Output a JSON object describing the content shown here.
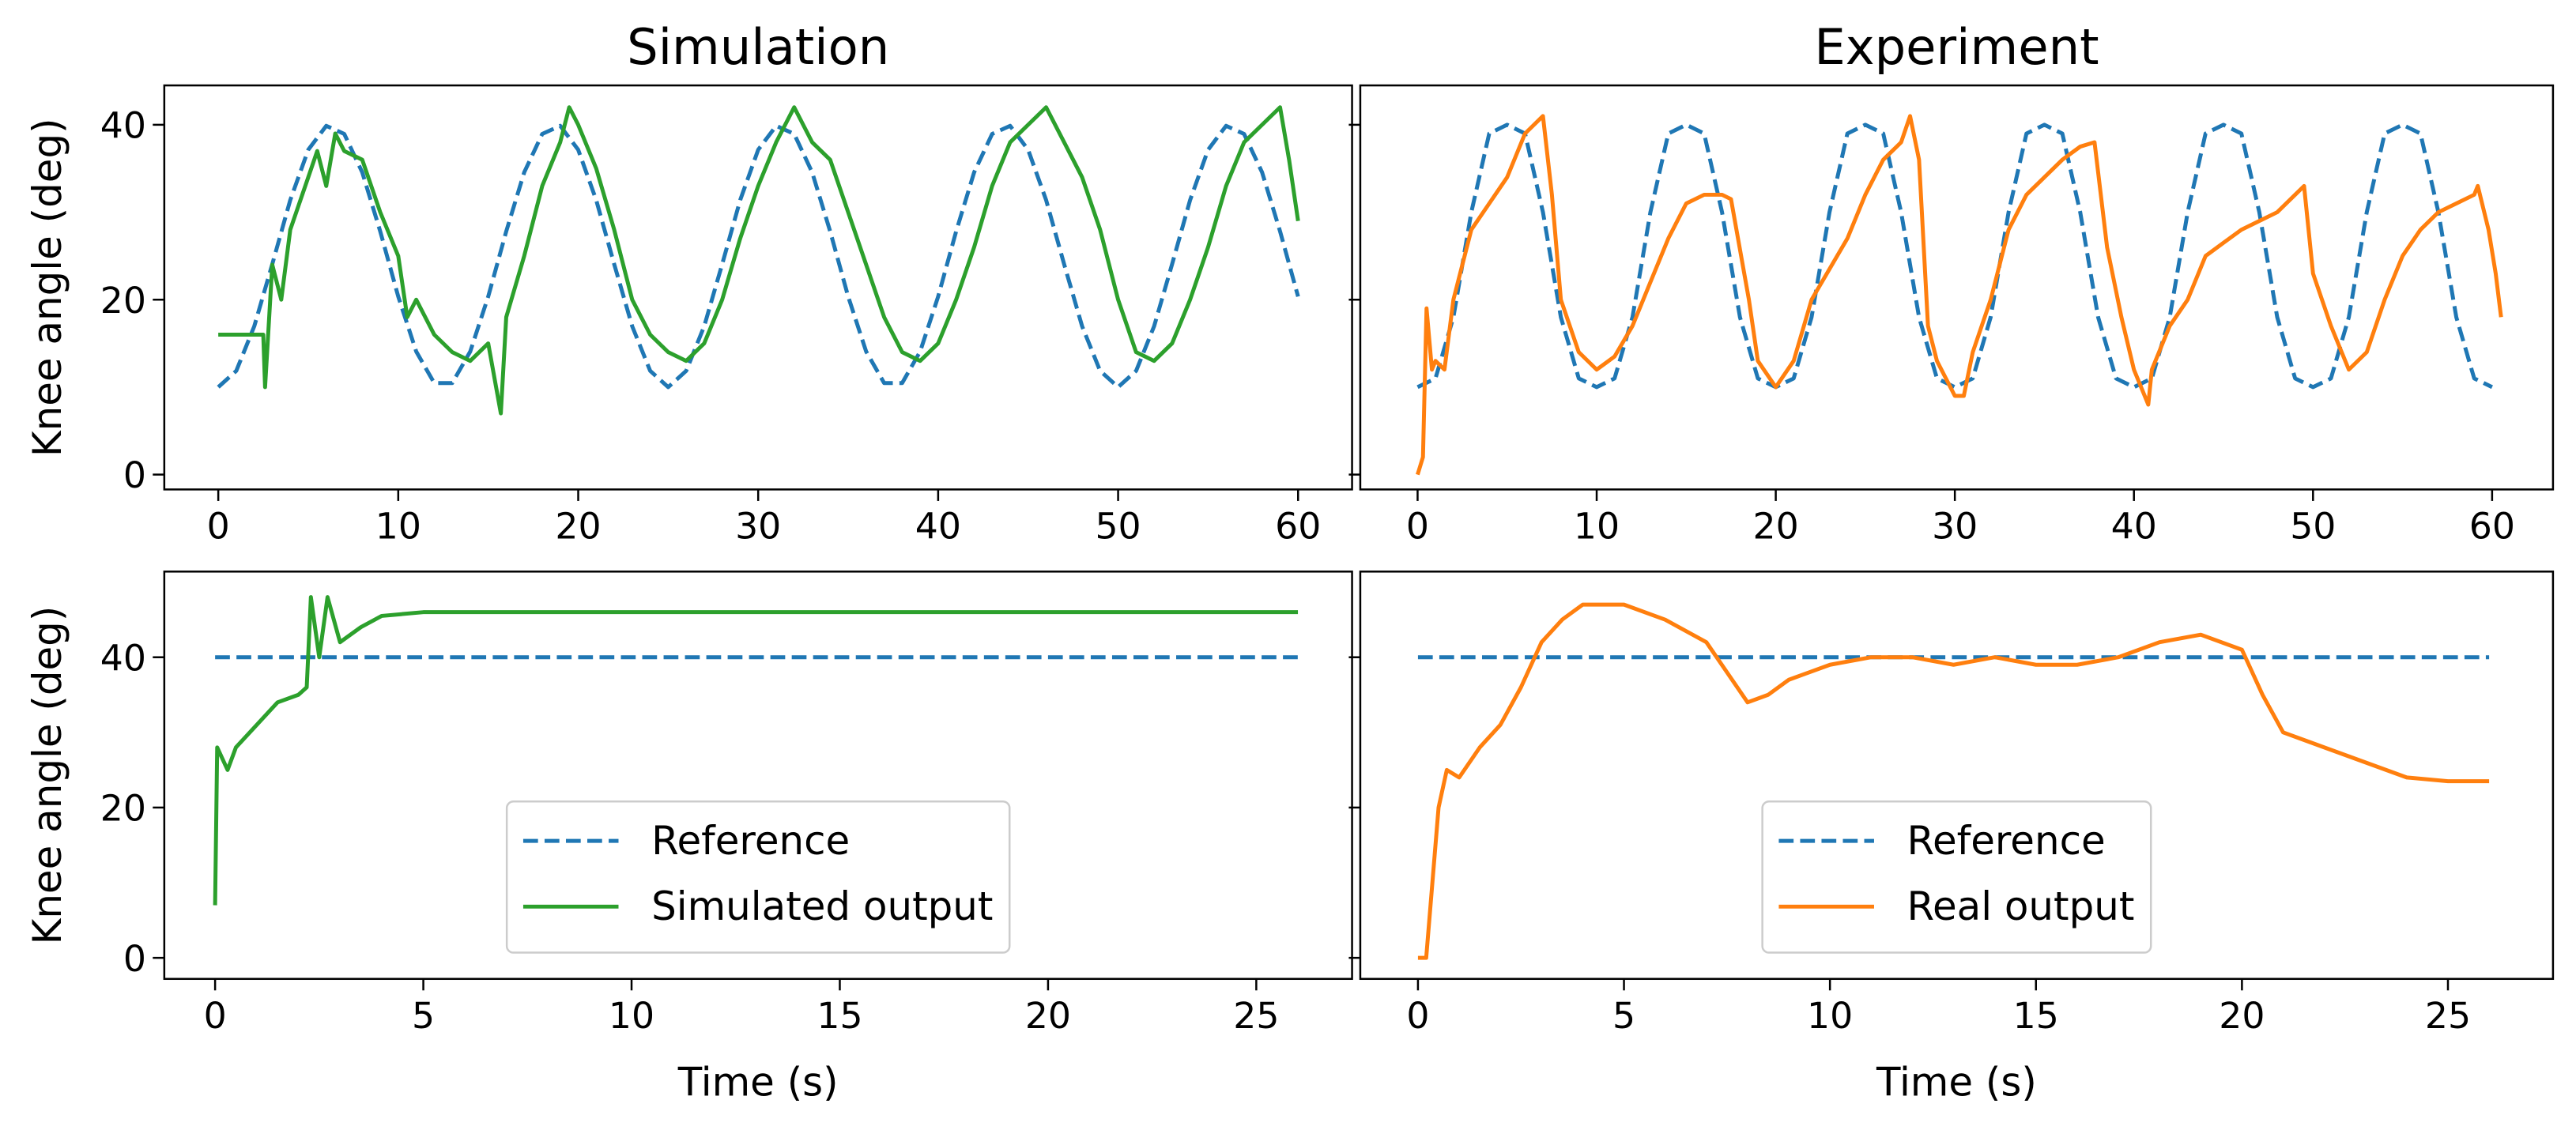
{
  "chart_data": [
    {
      "type": "line",
      "title": "Simulation",
      "ylabel": "Knee angle (deg)",
      "xlim": [
        -3,
        63
      ],
      "xticks": [
        0,
        10,
        20,
        30,
        40,
        50,
        60
      ],
      "ylim": [
        -1.7,
        44.5
      ],
      "yticks": [
        0,
        20,
        40
      ],
      "ytick_labels": true,
      "series": [
        {
          "color": "#1f77b4",
          "dashed": true,
          "x": [
            0,
            1,
            2,
            3,
            4,
            5,
            6,
            7,
            8,
            9,
            10,
            11,
            12,
            13,
            14,
            15,
            16,
            17,
            18,
            19,
            20,
            21,
            22,
            23,
            24,
            25,
            26,
            27,
            28,
            29,
            30,
            31,
            32,
            33,
            34,
            35,
            36,
            37,
            38,
            39,
            40,
            41,
            42,
            43,
            44,
            45,
            46,
            47,
            48,
            49,
            50,
            51,
            52,
            53,
            54,
            55,
            56,
            57,
            58,
            59,
            60
          ],
          "values": [
            10,
            11.86,
            16.96,
            24.06,
            31.39,
            37.14,
            39.88,
            38.95,
            34.56,
            27.81,
            20.36,
            14.07,
            10.47,
            10.47,
            14.07,
            20.36,
            27.81,
            34.56,
            38.95,
            39.88,
            37.14,
            31.39,
            24.06,
            16.96,
            11.86,
            10,
            11.86,
            16.96,
            24.06,
            31.39,
            37.14,
            39.88,
            38.95,
            34.56,
            27.81,
            20.36,
            14.07,
            10.47,
            10.47,
            14.07,
            20.36,
            27.81,
            34.56,
            38.95,
            39.88,
            37.14,
            31.39,
            24.06,
            16.96,
            11.86,
            10,
            11.86,
            16.96,
            24.06,
            31.39,
            37.14,
            39.88,
            38.95,
            34.56,
            27.81,
            20.36
          ]
        },
        {
          "color": "#2ca02c",
          "dashed": false,
          "x": [
            0,
            2.5,
            2.6,
            3,
            3.5,
            4,
            5,
            5.5,
            6,
            6.5,
            7,
            8,
            9,
            10,
            10.5,
            11,
            12,
            13,
            14,
            15,
            15.7,
            16,
            17,
            18,
            19,
            19.5,
            20,
            21,
            22,
            23,
            24,
            25,
            26,
            27,
            28,
            29,
            30,
            31,
            32,
            33,
            34,
            35,
            36,
            37,
            38,
            39,
            40,
            41,
            42,
            43,
            44,
            45,
            46,
            47,
            48,
            49,
            50,
            51,
            52,
            53,
            54,
            55,
            56,
            57,
            58,
            59,
            59.5,
            60
          ],
          "values": [
            16,
            16,
            10,
            24,
            20,
            28,
            34,
            37,
            33,
            39,
            37,
            36,
            30,
            25,
            18,
            20,
            16,
            14,
            13,
            15,
            7,
            18,
            25,
            33,
            38,
            42,
            40,
            35,
            28,
            20,
            16,
            14,
            13,
            15,
            20,
            27,
            33,
            38,
            42,
            38,
            36,
            30,
            24,
            18,
            14,
            13,
            15,
            20,
            26,
            33,
            38,
            40,
            42,
            38,
            34,
            28,
            20,
            14,
            13,
            15,
            20,
            26,
            33,
            38,
            40,
            42,
            36,
            29
          ]
        }
      ]
    },
    {
      "type": "line",
      "title": "Experiment",
      "xlim": [
        -3.2,
        63.4
      ],
      "xticks": [
        0,
        10,
        20,
        30,
        40,
        50,
        60
      ],
      "ylim": [
        -1.7,
        44.5
      ],
      "yticks": [
        0,
        20,
        40
      ],
      "ytick_labels": false,
      "series": [
        {
          "color": "#1f77b4",
          "dashed": true,
          "x": [
            0,
            1,
            2,
            3,
            4,
            5,
            6,
            7,
            8,
            9,
            10,
            11,
            12,
            13,
            14,
            15,
            16,
            17,
            18,
            19,
            20,
            21,
            22,
            23,
            24,
            25,
            26,
            27,
            28,
            29,
            30,
            31,
            32,
            33,
            34,
            35,
            36,
            37,
            38,
            39,
            40,
            41,
            42,
            43,
            44,
            45,
            46,
            47,
            48,
            49,
            50,
            51,
            52,
            53,
            54,
            55,
            56,
            57,
            58,
            59,
            60
          ],
          "values": [
            10,
            11,
            18,
            30,
            39,
            40,
            39,
            30,
            18,
            11,
            10,
            11,
            18,
            30,
            39,
            40,
            39,
            30,
            18,
            11,
            10,
            11,
            18,
            30,
            39,
            40,
            39,
            30,
            18,
            11,
            10,
            11,
            18,
            30,
            39,
            40,
            39,
            30,
            18,
            11,
            10,
            11,
            18,
            30,
            39,
            40,
            39,
            30,
            18,
            11,
            10,
            11,
            18,
            30,
            39,
            40,
            39,
            30,
            18,
            11,
            10
          ]
        },
        {
          "color": "#ff7f0e",
          "dashed": false,
          "x": [
            0,
            0.3,
            0.5,
            0.8,
            1,
            1.5,
            2,
            3,
            4,
            5,
            6,
            6.5,
            7,
            7.5,
            8,
            9,
            10,
            11,
            12,
            13,
            14,
            15,
            16,
            17,
            17.5,
            18.5,
            19,
            20,
            21,
            22,
            24,
            25,
            26,
            27,
            27.5,
            28,
            28.5,
            29,
            30,
            30.5,
            31,
            32,
            33,
            34,
            35,
            36,
            37,
            37.8,
            38.5,
            39.3,
            40,
            40.8,
            41,
            42,
            43,
            44,
            45,
            46,
            47,
            48,
            49,
            49.5,
            50,
            51,
            52,
            53,
            54,
            55,
            56,
            57,
            58,
            59,
            59.2,
            59.8,
            60.2,
            60.5
          ],
          "values": [
            0,
            2,
            19,
            12,
            13,
            12,
            20,
            28,
            31,
            34,
            39,
            40,
            41,
            32,
            20,
            14,
            12,
            13.5,
            17,
            22,
            27,
            31,
            32,
            32,
            31.5,
            20,
            13,
            10,
            13,
            20,
            27,
            32,
            36,
            38,
            41,
            36,
            17,
            13,
            9,
            9,
            14,
            20,
            28,
            32,
            34,
            36,
            37.5,
            38,
            26,
            18,
            12,
            8,
            12,
            17,
            20,
            25,
            26.5,
            28,
            29,
            30,
            32,
            33,
            23,
            17,
            12,
            14,
            20,
            25,
            28,
            30,
            31,
            32,
            33,
            28,
            23,
            18
          ]
        }
      ]
    },
    {
      "type": "line",
      "xlabel": "Time (s)",
      "ylabel": "Knee angle (deg)",
      "xlim": [
        -1.22,
        27.3
      ],
      "xticks": [
        0,
        5,
        10,
        15,
        20,
        25
      ],
      "ylim": [
        -2.8,
        51.4
      ],
      "yticks": [
        0,
        20,
        40
      ],
      "ytick_labels": true,
      "legend": "lower center",
      "series": [
        {
          "name": "Reference",
          "color": "#1f77b4",
          "dashed": true,
          "x": [
            0,
            26
          ],
          "values": [
            40,
            40
          ]
        },
        {
          "name": "Simulated output",
          "color": "#2ca02c",
          "dashed": false,
          "x": [
            0,
            0.05,
            0.3,
            0.5,
            1,
            1.5,
            2,
            2.2,
            2.3,
            2.5,
            2.7,
            3,
            3.5,
            4,
            5,
            26
          ],
          "values": [
            7,
            28,
            25,
            28,
            31,
            34,
            35,
            36,
            48,
            40,
            48,
            42,
            44,
            45.5,
            46,
            46
          ]
        }
      ]
    },
    {
      "type": "line",
      "xlabel": "Time (s)",
      "xlim": [
        -1.4,
        27.55
      ],
      "xticks": [
        0,
        5,
        10,
        15,
        20,
        25
      ],
      "ylim": [
        -2.8,
        51.4
      ],
      "yticks": [
        0,
        20,
        40
      ],
      "ytick_labels": false,
      "legend": "lower center",
      "series": [
        {
          "name": "Reference",
          "color": "#1f77b4",
          "dashed": true,
          "x": [
            0,
            26
          ],
          "values": [
            40,
            40
          ]
        },
        {
          "name": "Real output",
          "color": "#ff7f0e",
          "dashed": false,
          "x": [
            0,
            0.2,
            0.5,
            0.7,
            1,
            1.5,
            2,
            2.5,
            3,
            3.5,
            4,
            5,
            6,
            7,
            7.5,
            8,
            8.5,
            9,
            10,
            11,
            12,
            13,
            14,
            15,
            16,
            17,
            18,
            19,
            20,
            20.5,
            21,
            22,
            23,
            24,
            25,
            26
          ],
          "values": [
            0,
            0,
            20,
            25,
            24,
            28,
            31,
            36,
            42,
            45,
            47,
            47,
            45,
            42,
            38,
            34,
            35,
            37,
            39,
            40,
            40,
            39,
            40,
            39,
            39,
            40,
            42,
            43,
            41,
            35,
            30,
            28,
            26,
            24,
            23.5,
            23.5
          ]
        }
      ]
    }
  ]
}
